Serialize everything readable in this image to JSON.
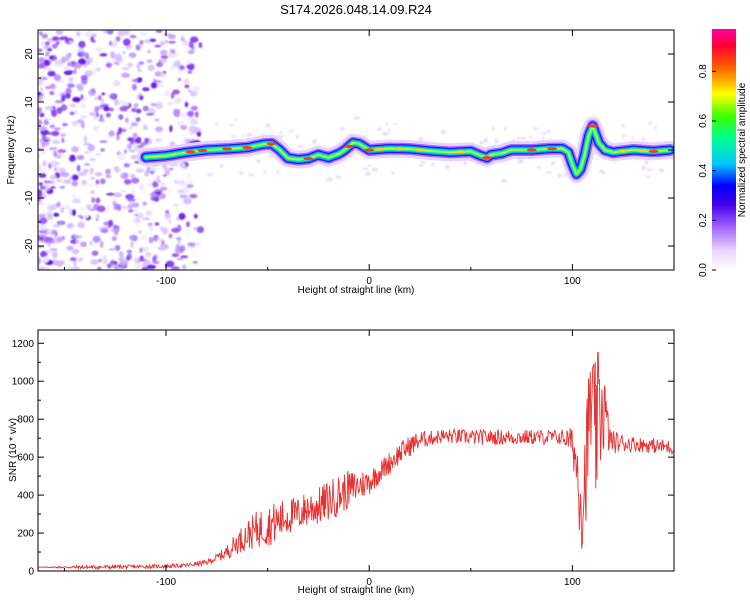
{
  "title": "S174.2026.048.14.09.R24",
  "colors": {
    "snr_line": "#e8312f",
    "axis": "#000000",
    "cmap": [
      "#ffffff",
      "#e8d6ff",
      "#a060ff",
      "#5a00e0",
      "#0000ff",
      "#00c8ff",
      "#00ff80",
      "#ffff00",
      "#ff4000",
      "#ff0066"
    ]
  },
  "chart_data": [
    {
      "type": "heatmap",
      "title": "S174.2026.048.14.09.R24",
      "xlabel": "Height of straight line (km)",
      "ylabel": "Frequency (Hz)",
      "xlim": [
        -163,
        150
      ],
      "ylim": [
        -25,
        25
      ],
      "xticks": [
        -100,
        0,
        100
      ],
      "yticks": [
        -20,
        -10,
        0,
        10,
        20
      ],
      "colorbar": {
        "label": "Normalized spectral amplitude",
        "range": [
          0,
          0.97
        ],
        "ticks": [
          0.0,
          0.2,
          0.4,
          0.6,
          0.8
        ]
      },
      "ridge": {
        "x": [
          -110,
          -100,
          -90,
          -80,
          -70,
          -60,
          -52,
          -48,
          -44,
          -40,
          -35,
          -30,
          -25,
          -20,
          -15,
          -12,
          -8,
          -5,
          0,
          10,
          20,
          30,
          40,
          50,
          55,
          58,
          60,
          65,
          70,
          80,
          90,
          95,
          98,
          100,
          102,
          104,
          106,
          108,
          110,
          113,
          116,
          120,
          130,
          140,
          148
        ],
        "freq": [
          -1.5,
          -1.2,
          -0.5,
          0,
          0.2,
          0.5,
          1.2,
          1.3,
          0,
          -1.7,
          -2.0,
          -1.8,
          -1.0,
          -1.6,
          -0.8,
          0,
          1.5,
          1.3,
          0,
          0.3,
          0.2,
          -0.2,
          -0.5,
          -0.3,
          -1.2,
          -1.6,
          -1.0,
          -0.7,
          0,
          0,
          0.3,
          0.3,
          -0.5,
          -3.0,
          -5.0,
          -4.0,
          -1.0,
          3.0,
          5.0,
          1.5,
          0,
          -0.5,
          0,
          -0.3,
          0
        ]
      }
    },
    {
      "type": "line",
      "xlabel": "Height of straight line (km)",
      "ylabel": "SNR (10 * v/v)",
      "xlim": [
        -163,
        150
      ],
      "ylim": [
        0,
        1270
      ],
      "xticks": [
        -100,
        0,
        100
      ],
      "yticks": [
        0,
        200,
        400,
        600,
        800,
        1000,
        1200
      ],
      "series": [
        {
          "name": "SNR",
          "x": [
            -163,
            -140,
            -120,
            -100,
            -90,
            -80,
            -75,
            -70,
            -65,
            -60,
            -55,
            -50,
            -45,
            -40,
            -35,
            -30,
            -25,
            -20,
            -15,
            -10,
            -5,
            0,
            5,
            10,
            15,
            20,
            25,
            30,
            35,
            40,
            50,
            60,
            70,
            80,
            90,
            95,
            100,
            103,
            105,
            107,
            109,
            111,
            113,
            115,
            118,
            120,
            130,
            140,
            150
          ],
          "y": [
            20,
            20,
            22,
            25,
            30,
            45,
            70,
            100,
            150,
            190,
            220,
            240,
            260,
            290,
            300,
            330,
            340,
            370,
            400,
            430,
            450,
            470,
            520,
            570,
            620,
            660,
            690,
            700,
            710,
            710,
            705,
            705,
            705,
            705,
            705,
            705,
            680,
            500,
            350,
            600,
            900,
            700,
            800,
            900,
            700,
            680,
            670,
            660,
            650
          ],
          "jitter": [
            0,
            10,
            10,
            10,
            10,
            15,
            20,
            40,
            60,
            80,
            100,
            110,
            110,
            100,
            90,
            100,
            100,
            110,
            110,
            100,
            80,
            70,
            60,
            60,
            60,
            55,
            50,
            40,
            40,
            40,
            40,
            40,
            40,
            40,
            40,
            40,
            80,
            250,
            300,
            300,
            350,
            400,
            380,
            300,
            80,
            60,
            40,
            40,
            40
          ]
        }
      ]
    }
  ]
}
